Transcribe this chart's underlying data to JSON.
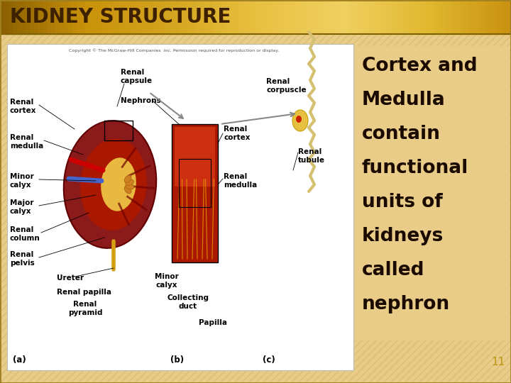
{
  "title": "KIDNEY STRUCTURE",
  "title_color": "#3d2000",
  "title_bg_colors": [
    "#8b6000",
    "#c8920a",
    "#d4a520",
    "#e8c040",
    "#f0d060",
    "#e0b830",
    "#c89010"
  ],
  "background_color": "#e8cc88",
  "bg_stripe_color": "#d4b870",
  "body_text_lines": [
    "Cortex and",
    "Medulla",
    "contain",
    "functional",
    "units of",
    "kidneys",
    "called",
    "nephron"
  ],
  "body_text_color": "#1a0a00",
  "slide_number": "11",
  "slide_number_color": "#b8960b",
  "diagram_bg": "#ffffff",
  "diagram_border": "#cccccc",
  "title_fontsize": 20,
  "body_fontsize": 19,
  "slide_num_fontsize": 11,
  "kidney_dark_red": "#8b1a1a",
  "kidney_mid_red": "#cc2200",
  "kidney_light": "#e06030",
  "kidney_pelvis": "#f0c040",
  "kidney_blue": "#4466cc",
  "kidney_yellow": "#d4a010",
  "label_color": "#000000",
  "label_fontsize": 7.5,
  "diagram_label_fontsize": 8.5
}
